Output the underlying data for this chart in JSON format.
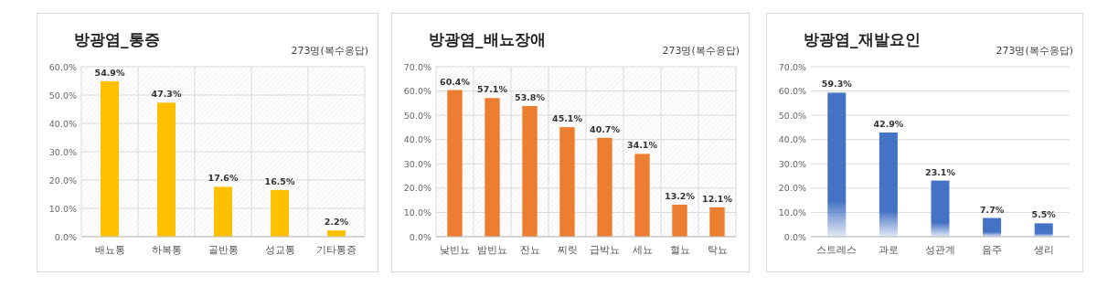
{
  "chart_data": [
    {
      "type": "bar",
      "title": "방광염_통증",
      "subtitle": "273명(복수응답)",
      "categories": [
        "배뇨통",
        "하복통",
        "골반통",
        "성교통",
        "기타통증"
      ],
      "values": [
        54.9,
        47.3,
        17.6,
        16.5,
        2.2
      ],
      "color": "#ffc000",
      "value_labels": [
        "54.9%",
        "47.3%",
        "17.6%",
        "16.5%",
        "2.2%"
      ],
      "ylim": [
        0,
        60
      ],
      "yticks": [
        {
          "value": 0,
          "label": "0.0%"
        },
        {
          "value": 10,
          "label": "10.0%"
        },
        {
          "value": 20,
          "label": "20.0%"
        },
        {
          "value": 30,
          "label": "30.0%"
        },
        {
          "value": 40,
          "label": "40.0%"
        },
        {
          "value": 50,
          "label": "50.0%"
        },
        {
          "value": 60,
          "label": "60.0%"
        }
      ],
      "grid": true
    },
    {
      "type": "bar",
      "title": "방광염_배뇨장애",
      "subtitle": "273명(복수응답)",
      "categories": [
        "낮빈뇨",
        "밤빈뇨",
        "잔뇨",
        "찌릿",
        "급박뇨",
        "세뇨",
        "혈뇨",
        "탁뇨"
      ],
      "values": [
        60.4,
        57.1,
        53.8,
        45.1,
        40.7,
        34.1,
        13.2,
        12.1
      ],
      "color": "#ed7d31",
      "value_labels": [
        "60.4%",
        "57.1%",
        "53.8%",
        "45.1%",
        "40.7%",
        "34.1%",
        "13.2%",
        "12.1%"
      ],
      "ylim": [
        0,
        70
      ],
      "yticks": [
        {
          "value": 0,
          "label": "0.0%"
        },
        {
          "value": 10,
          "label": "10.0%"
        },
        {
          "value": 20,
          "label": "20.0%"
        },
        {
          "value": 30,
          "label": "30.0%"
        },
        {
          "value": 40,
          "label": "40.0%"
        },
        {
          "value": 50,
          "label": "50.0%"
        },
        {
          "value": 60,
          "label": "60.0%"
        },
        {
          "value": 70,
          "label": "70.0%"
        }
      ],
      "grid": true
    },
    {
      "type": "bar",
      "title": "방광염_재발요인",
      "subtitle": "273명(복수응답)",
      "categories": [
        "스트레스",
        "과로",
        "성관계",
        "음주",
        "생리"
      ],
      "values": [
        59.3,
        42.9,
        23.1,
        7.7,
        5.5
      ],
      "color": "#4472c4",
      "value_labels": [
        "59.3%",
        "42.9%",
        "23.1%",
        "7.7%",
        "5.5%"
      ],
      "ylim": [
        0,
        70
      ],
      "yticks": [
        {
          "value": 0,
          "label": "0.0%"
        },
        {
          "value": 10,
          "label": "10.0%"
        },
        {
          "value": 20,
          "label": "20.0%"
        },
        {
          "value": 30,
          "label": "30.0%"
        },
        {
          "value": 40,
          "label": "40.0%"
        },
        {
          "value": 50,
          "label": "50.0%"
        },
        {
          "value": 60,
          "label": "60.0%"
        },
        {
          "value": 70,
          "label": "70.0%"
        }
      ],
      "grid": "y"
    }
  ]
}
